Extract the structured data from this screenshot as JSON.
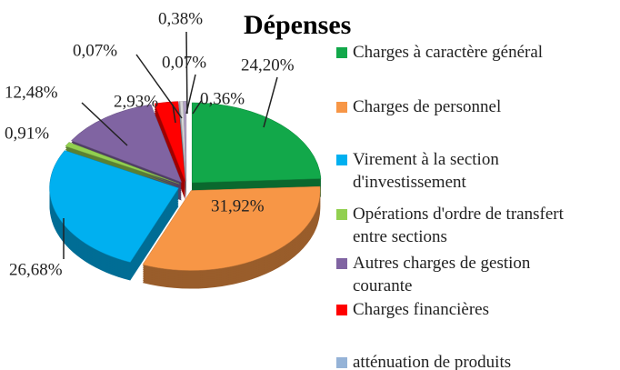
{
  "chart_data": {
    "type": "pie",
    "title": "Dépenses",
    "categories": [
      "Charges à caractère général",
      "Charges de personnel",
      "Virement à la section d'investissement",
      "Opérations d'ordre de transfert entre sections",
      "Autres charges de gestion courante",
      "Charges financières",
      "atténuation de produits",
      null,
      null,
      null
    ],
    "values": [
      24.2,
      31.92,
      26.68,
      0.91,
      12.48,
      2.93,
      0.07,
      0.07,
      0.38,
      0.36
    ],
    "value_labels": [
      "24,20%",
      "31,92%",
      "26,68%",
      "0,91%",
      "12,48%",
      "2,93%",
      "0,07%",
      "0,07%",
      "0,38%",
      "0,36%"
    ],
    "colors": [
      "#12a84a",
      "#f79646",
      "#00b0f0",
      "#92d050",
      "#8064a2",
      "#ff0000",
      "#95b3d7",
      "#c0c0c0",
      "#d9d9d9",
      "#b3a2c7"
    ]
  }
}
